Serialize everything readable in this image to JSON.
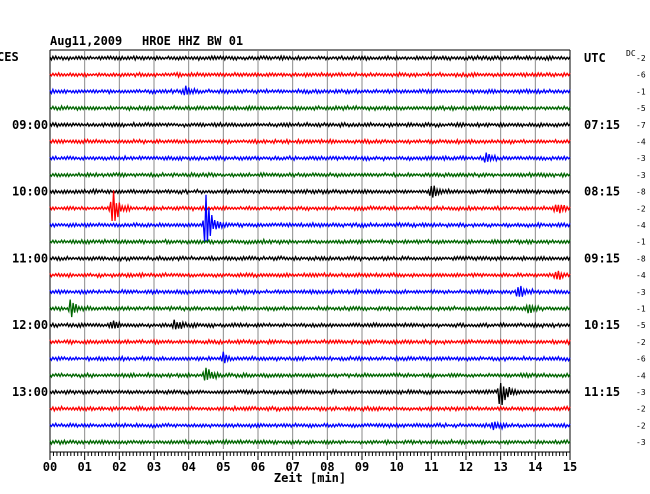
{
  "header": {
    "date": "Aug11,2009",
    "station": "HROE HHZ BW 01",
    "left_zone": "CES",
    "right_zone": "UTC",
    "dc_label": "DC"
  },
  "chart_data": {
    "type": "line",
    "title": "Aug11,2009   HROE HHZ BW 01",
    "xlabel": "Zeit [min]",
    "xlim": [
      0,
      15
    ],
    "x_ticks": [
      "00",
      "01",
      "02",
      "03",
      "04",
      "05",
      "06",
      "07",
      "08",
      "09",
      "10",
      "11",
      "12",
      "13",
      "14",
      "15"
    ],
    "grid": true,
    "trace_colors": [
      "#000000",
      "#ff0000",
      "#0000ff",
      "#006600"
    ],
    "left_time_labels": [
      {
        "row": 4,
        "label": "09:00"
      },
      {
        "row": 8,
        "label": "10:00"
      },
      {
        "row": 12,
        "label": "11:00"
      },
      {
        "row": 16,
        "label": "12:00"
      },
      {
        "row": 20,
        "label": "13:00"
      }
    ],
    "right_time_labels": [
      {
        "row": 0,
        "label": "UTC"
      },
      {
        "row": 4,
        "label": "07:15"
      },
      {
        "row": 8,
        "label": "08:15"
      },
      {
        "row": 12,
        "label": "09:15"
      },
      {
        "row": 16,
        "label": "10:15"
      },
      {
        "row": 20,
        "label": "11:15"
      }
    ],
    "dc_offsets": [
      "-2",
      "-6",
      "-1",
      "-5",
      "-7",
      "-4",
      "-3",
      "-3",
      "-8",
      "-2",
      "-4",
      "-1",
      "-8",
      "-4",
      "-3",
      "-1",
      "-5",
      "-2",
      "-6",
      "-4",
      "-3",
      "-2",
      "-2",
      "-3"
    ],
    "rows": [
      {
        "events": []
      },
      {
        "events": []
      },
      {
        "events": [
          {
            "t": 3.9,
            "amp": 0.3
          }
        ]
      },
      {
        "events": []
      },
      {
        "events": []
      },
      {
        "events": []
      },
      {
        "events": [
          {
            "t": 12.6,
            "amp": 0.3
          }
        ]
      },
      {
        "events": []
      },
      {
        "events": [
          {
            "t": 11.0,
            "amp": 0.4
          }
        ]
      },
      {
        "events": [
          {
            "t": 1.8,
            "amp": 1.1
          },
          {
            "t": 14.6,
            "amp": 0.35
          }
        ]
      },
      {
        "events": [
          {
            "t": 4.5,
            "amp": 1.4
          }
        ]
      },
      {
        "events": []
      },
      {
        "events": []
      },
      {
        "events": [
          {
            "t": 14.6,
            "amp": 0.3
          }
        ]
      },
      {
        "events": [
          {
            "t": 13.5,
            "amp": 0.35
          }
        ]
      },
      {
        "events": [
          {
            "t": 0.6,
            "amp": 0.45
          },
          {
            "t": 13.8,
            "amp": 0.3
          }
        ]
      },
      {
        "events": [
          {
            "t": 3.6,
            "amp": 0.35
          },
          {
            "t": 1.8,
            "amp": 0.25
          }
        ]
      },
      {
        "events": []
      },
      {
        "events": [
          {
            "t": 5.0,
            "amp": 0.3
          }
        ]
      },
      {
        "events": [
          {
            "t": 4.5,
            "amp": 0.35
          }
        ]
      },
      {
        "events": [
          {
            "t": 13.0,
            "amp": 0.9
          }
        ]
      },
      {
        "events": []
      },
      {
        "events": [
          {
            "t": 12.8,
            "amp": 0.3
          }
        ]
      },
      {
        "events": []
      }
    ]
  }
}
